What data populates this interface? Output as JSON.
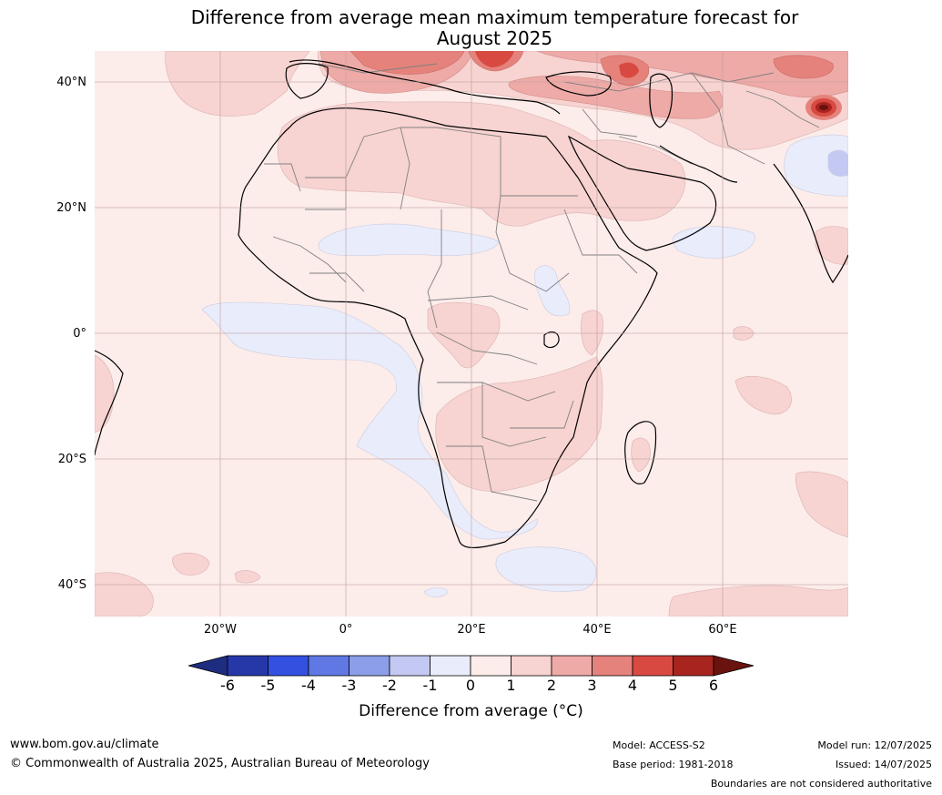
{
  "title": {
    "line1": "Difference from average mean maximum temperature forecast for",
    "line2": "August 2025"
  },
  "map": {
    "lat_labels": [
      "40°N",
      "20°N",
      "0°",
      "20°S",
      "40°S"
    ],
    "lon_labels": [
      "20°W",
      "0°",
      "20°E",
      "40°E",
      "60°E"
    ],
    "background_anomaly_class": "0 to 1",
    "land_coastline_color": "#000000",
    "border_color": "#808080",
    "grid_color": "#c0a0a0",
    "projection": "equirectangular",
    "lon_range": [
      -40,
      80
    ],
    "lat_range": [
      -45,
      45
    ],
    "features": [
      {
        "name": "Middle East and Europe warm anomaly",
        "class": "2 to 3"
      },
      {
        "name": "Caspian hot spot",
        "class": "5 to 6 and above"
      },
      {
        "name": "Sahel cool band",
        "class": "-1 to 0"
      },
      {
        "name": "Southern Atlantic cool band",
        "class": "-1 to 0"
      },
      {
        "name": "Southern Africa warm anomaly",
        "class": "1 to 2"
      }
    ]
  },
  "colorbar": {
    "title": "Difference from average ($^\\circ$C)",
    "title_display": "Difference from average (°C)",
    "tick_labels": [
      "-6",
      "-5",
      "-4",
      "-3",
      "-2",
      "-1",
      "0",
      "1",
      "2",
      "3",
      "4",
      "5",
      "6"
    ],
    "colors": [
      "#1f2d80",
      "#2638a8",
      "#3350e0",
      "#5f78e4",
      "#8c9ee8",
      "#c3c9f2",
      "#e9ecfb",
      "#fcecea",
      "#f7d3d1",
      "#eeaaa7",
      "#e5827c",
      "#d84a41",
      "#a8241e",
      "#6a120e"
    ]
  },
  "footer": {
    "url": "www.bom.gov.au/climate",
    "copyright": "© Commonwealth of Australia 2025, Australian Bureau of Meteorology",
    "model": "Model: ACCESS-S2",
    "base_period": "Base period: 1981-2018",
    "model_run": "Model run: 12/07/2025",
    "issued": "Issued: 14/07/2025",
    "disclaimer": "Boundaries are not considered authoritative"
  }
}
